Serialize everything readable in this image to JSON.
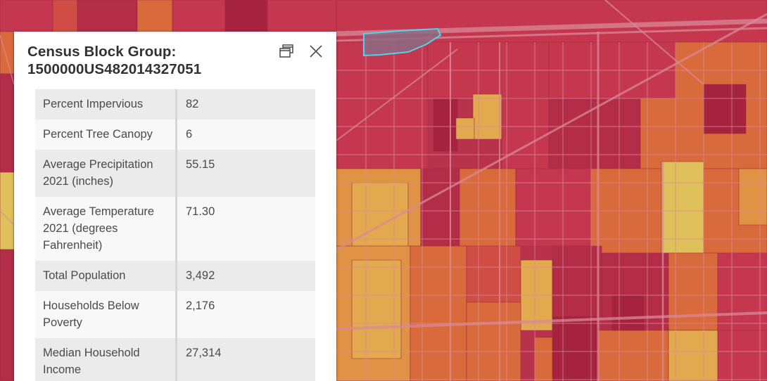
{
  "map": {
    "colors": {
      "dark_red": "#a5233f",
      "red": "#c4374f",
      "crimson": "#b32d48",
      "red_orange": "#cf4d45",
      "orange": "#d96a3c",
      "light_orange": "#e09245",
      "tan": "#e2a94e",
      "yellow": "#e0c05a",
      "street": "#d98a97",
      "highlight_fill": "#8e6b84",
      "highlight_outline": "#4fd4ea"
    }
  },
  "popup": {
    "title_line1": "Census Block Group:",
    "title_line2": "1500000US482014327051",
    "dock_icon": "dock-popup-icon",
    "close_icon": "close-icon",
    "rows": [
      {
        "label": "Percent Impervious",
        "value": "82"
      },
      {
        "label": "Percent Tree Canopy",
        "value": "6"
      },
      {
        "label": "Average Precipitation 2021 (inches)",
        "value": "55.15"
      },
      {
        "label": "Average Temperature 2021 (degrees Fahrenheit)",
        "value": "71.30"
      },
      {
        "label": "Total Population",
        "value": "3,492"
      },
      {
        "label": "Households Below Poverty",
        "value": "2,176"
      },
      {
        "label": "Median Household Income",
        "value": "27,314"
      }
    ]
  }
}
